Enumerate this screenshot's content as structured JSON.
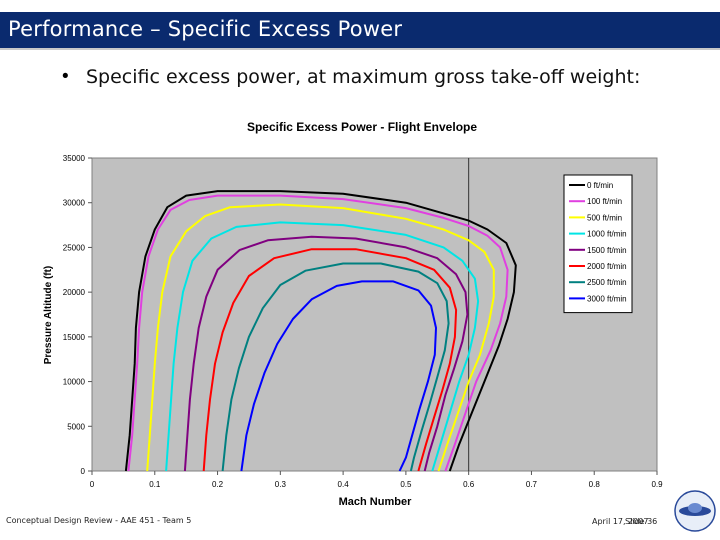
{
  "slide": {
    "title": "Performance – Specific Excess Power",
    "bullet_symbol": "•",
    "bullet": "Specific excess power, at maximum gross take-off weight:",
    "footer_left": "Conceptual Design Review - AAE 451 - Team 5",
    "footer_date": "April 17, 2007",
    "footer_slide": "Slide 36",
    "colors": {
      "title_bar": "#0a2a6e",
      "title_text": "#ffffff",
      "plot_bg": "#c0c0c0"
    }
  },
  "chart_data": {
    "type": "line",
    "title": "Specific Excess Power - Flight Envelope",
    "xlabel": "Mach Number",
    "ylabel": "Pressure Altitude (ft)",
    "xlim": [
      0,
      0.9
    ],
    "ylim": [
      0,
      35000
    ],
    "x_ticks": [
      "0",
      "0.1",
      "0.2",
      "0.3",
      "0.4",
      "0.5",
      "0.6",
      "0.7",
      "0.8",
      "0.9"
    ],
    "y_ticks": [
      "0",
      "5000",
      "10000",
      "15000",
      "20000",
      "25000",
      "30000",
      "35000"
    ],
    "grid": false,
    "legend_position": "top-right",
    "reference_line_mach": 0.6,
    "series": [
      {
        "name": "0 ft/min",
        "color": "#000000",
        "points": [
          [
            0.054,
            0
          ],
          [
            0.06,
            4000
          ],
          [
            0.064,
            8000
          ],
          [
            0.068,
            12000
          ],
          [
            0.07,
            16000
          ],
          [
            0.075,
            20000
          ],
          [
            0.085,
            24000
          ],
          [
            0.1,
            27000
          ],
          [
            0.12,
            29500
          ],
          [
            0.15,
            30800
          ],
          [
            0.2,
            31300
          ],
          [
            0.3,
            31300
          ],
          [
            0.4,
            31000
          ],
          [
            0.5,
            30000
          ],
          [
            0.56,
            28800
          ],
          [
            0.6,
            28000
          ],
          [
            0.63,
            27000
          ],
          [
            0.66,
            25500
          ],
          [
            0.675,
            23000
          ],
          [
            0.672,
            20000
          ],
          [
            0.662,
            17000
          ],
          [
            0.648,
            14000
          ],
          [
            0.625,
            10000
          ],
          [
            0.605,
            6500
          ],
          [
            0.585,
            3000
          ],
          [
            0.57,
            0
          ]
        ]
      },
      {
        "name": "100 ft/min",
        "color": "#e040e0",
        "points": [
          [
            0.058,
            0
          ],
          [
            0.064,
            4000
          ],
          [
            0.068,
            8000
          ],
          [
            0.072,
            12000
          ],
          [
            0.075,
            16000
          ],
          [
            0.08,
            20000
          ],
          [
            0.09,
            24000
          ],
          [
            0.105,
            27000
          ],
          [
            0.125,
            29200
          ],
          [
            0.155,
            30300
          ],
          [
            0.2,
            30800
          ],
          [
            0.3,
            30800
          ],
          [
            0.4,
            30400
          ],
          [
            0.5,
            29400
          ],
          [
            0.56,
            28300
          ],
          [
            0.6,
            27400
          ],
          [
            0.63,
            26300
          ],
          [
            0.65,
            25000
          ],
          [
            0.662,
            22500
          ],
          [
            0.66,
            19500
          ],
          [
            0.65,
            16500
          ],
          [
            0.635,
            13500
          ],
          [
            0.612,
            10000
          ],
          [
            0.595,
            6500
          ],
          [
            0.578,
            3000
          ],
          [
            0.563,
            0
          ]
        ]
      },
      {
        "name": "500 ft/min",
        "color": "#ffff00",
        "points": [
          [
            0.088,
            0
          ],
          [
            0.092,
            4000
          ],
          [
            0.096,
            8000
          ],
          [
            0.1,
            12000
          ],
          [
            0.105,
            16000
          ],
          [
            0.112,
            20000
          ],
          [
            0.125,
            24000
          ],
          [
            0.15,
            26800
          ],
          [
            0.18,
            28500
          ],
          [
            0.22,
            29500
          ],
          [
            0.3,
            29800
          ],
          [
            0.4,
            29400
          ],
          [
            0.5,
            28200
          ],
          [
            0.56,
            27000
          ],
          [
            0.6,
            25800
          ],
          [
            0.625,
            24500
          ],
          [
            0.64,
            22500
          ],
          [
            0.64,
            19500
          ],
          [
            0.632,
            16500
          ],
          [
            0.618,
            13000
          ],
          [
            0.6,
            10000
          ],
          [
            0.583,
            6500
          ],
          [
            0.566,
            3000
          ],
          [
            0.552,
            0
          ]
        ]
      },
      {
        "name": "1000 ft/min",
        "color": "#00e5e5",
        "points": [
          [
            0.118,
            0
          ],
          [
            0.122,
            4000
          ],
          [
            0.126,
            8000
          ],
          [
            0.13,
            12000
          ],
          [
            0.136,
            16000
          ],
          [
            0.145,
            20000
          ],
          [
            0.16,
            23500
          ],
          [
            0.19,
            26000
          ],
          [
            0.23,
            27300
          ],
          [
            0.3,
            27800
          ],
          [
            0.4,
            27500
          ],
          [
            0.5,
            26400
          ],
          [
            0.56,
            25000
          ],
          [
            0.59,
            23500
          ],
          [
            0.61,
            21500
          ],
          [
            0.615,
            19000
          ],
          [
            0.61,
            16000
          ],
          [
            0.6,
            13000
          ],
          [
            0.585,
            10000
          ],
          [
            0.57,
            6500
          ],
          [
            0.555,
            3000
          ],
          [
            0.542,
            0
          ]
        ]
      },
      {
        "name": "1500 ft/min",
        "color": "#800080",
        "points": [
          [
            0.148,
            0
          ],
          [
            0.152,
            4000
          ],
          [
            0.156,
            8000
          ],
          [
            0.162,
            12000
          ],
          [
            0.17,
            16000
          ],
          [
            0.182,
            19500
          ],
          [
            0.2,
            22500
          ],
          [
            0.235,
            24700
          ],
          [
            0.28,
            25800
          ],
          [
            0.35,
            26200
          ],
          [
            0.42,
            26000
          ],
          [
            0.5,
            25000
          ],
          [
            0.55,
            23800
          ],
          [
            0.58,
            22000
          ],
          [
            0.595,
            20000
          ],
          [
            0.598,
            17500
          ],
          [
            0.59,
            14500
          ],
          [
            0.577,
            11500
          ],
          [
            0.563,
            8500
          ],
          [
            0.55,
            5000
          ],
          [
            0.537,
            2000
          ],
          [
            0.53,
            0
          ]
        ]
      },
      {
        "name": "2000 ft/min",
        "color": "#ff0000",
        "points": [
          [
            0.178,
            0
          ],
          [
            0.182,
            4000
          ],
          [
            0.188,
            8000
          ],
          [
            0.196,
            12000
          ],
          [
            0.208,
            15500
          ],
          [
            0.225,
            18800
          ],
          [
            0.25,
            21800
          ],
          [
            0.29,
            23800
          ],
          [
            0.35,
            24800
          ],
          [
            0.42,
            24800
          ],
          [
            0.5,
            23800
          ],
          [
            0.545,
            22500
          ],
          [
            0.57,
            20500
          ],
          [
            0.58,
            18000
          ],
          [
            0.578,
            15000
          ],
          [
            0.57,
            12000
          ],
          [
            0.558,
            9000
          ],
          [
            0.545,
            6000
          ],
          [
            0.532,
            3000
          ],
          [
            0.52,
            0
          ]
        ]
      },
      {
        "name": "2500 ft/min",
        "color": "#008080",
        "points": [
          [
            0.208,
            0
          ],
          [
            0.214,
            4000
          ],
          [
            0.222,
            8000
          ],
          [
            0.234,
            11500
          ],
          [
            0.25,
            15000
          ],
          [
            0.272,
            18200
          ],
          [
            0.3,
            20800
          ],
          [
            0.34,
            22400
          ],
          [
            0.4,
            23200
          ],
          [
            0.46,
            23200
          ],
          [
            0.52,
            22300
          ],
          [
            0.55,
            21000
          ],
          [
            0.565,
            19000
          ],
          [
            0.568,
            16500
          ],
          [
            0.562,
            13500
          ],
          [
            0.55,
            10500
          ],
          [
            0.538,
            7500
          ],
          [
            0.525,
            4500
          ],
          [
            0.513,
            1500
          ],
          [
            0.508,
            0
          ]
        ]
      },
      {
        "name": "3000 ft/min",
        "color": "#0000ff",
        "points": [
          [
            0.238,
            0
          ],
          [
            0.246,
            4000
          ],
          [
            0.258,
            7500
          ],
          [
            0.275,
            11000
          ],
          [
            0.295,
            14200
          ],
          [
            0.32,
            17000
          ],
          [
            0.35,
            19200
          ],
          [
            0.39,
            20700
          ],
          [
            0.43,
            21200
          ],
          [
            0.48,
            21200
          ],
          [
            0.52,
            20200
          ],
          [
            0.54,
            18500
          ],
          [
            0.548,
            16000
          ],
          [
            0.546,
            13000
          ],
          [
            0.535,
            10000
          ],
          [
            0.522,
            7000
          ],
          [
            0.51,
            4000
          ],
          [
            0.5,
            1500
          ],
          [
            0.49,
            0
          ]
        ]
      }
    ]
  }
}
